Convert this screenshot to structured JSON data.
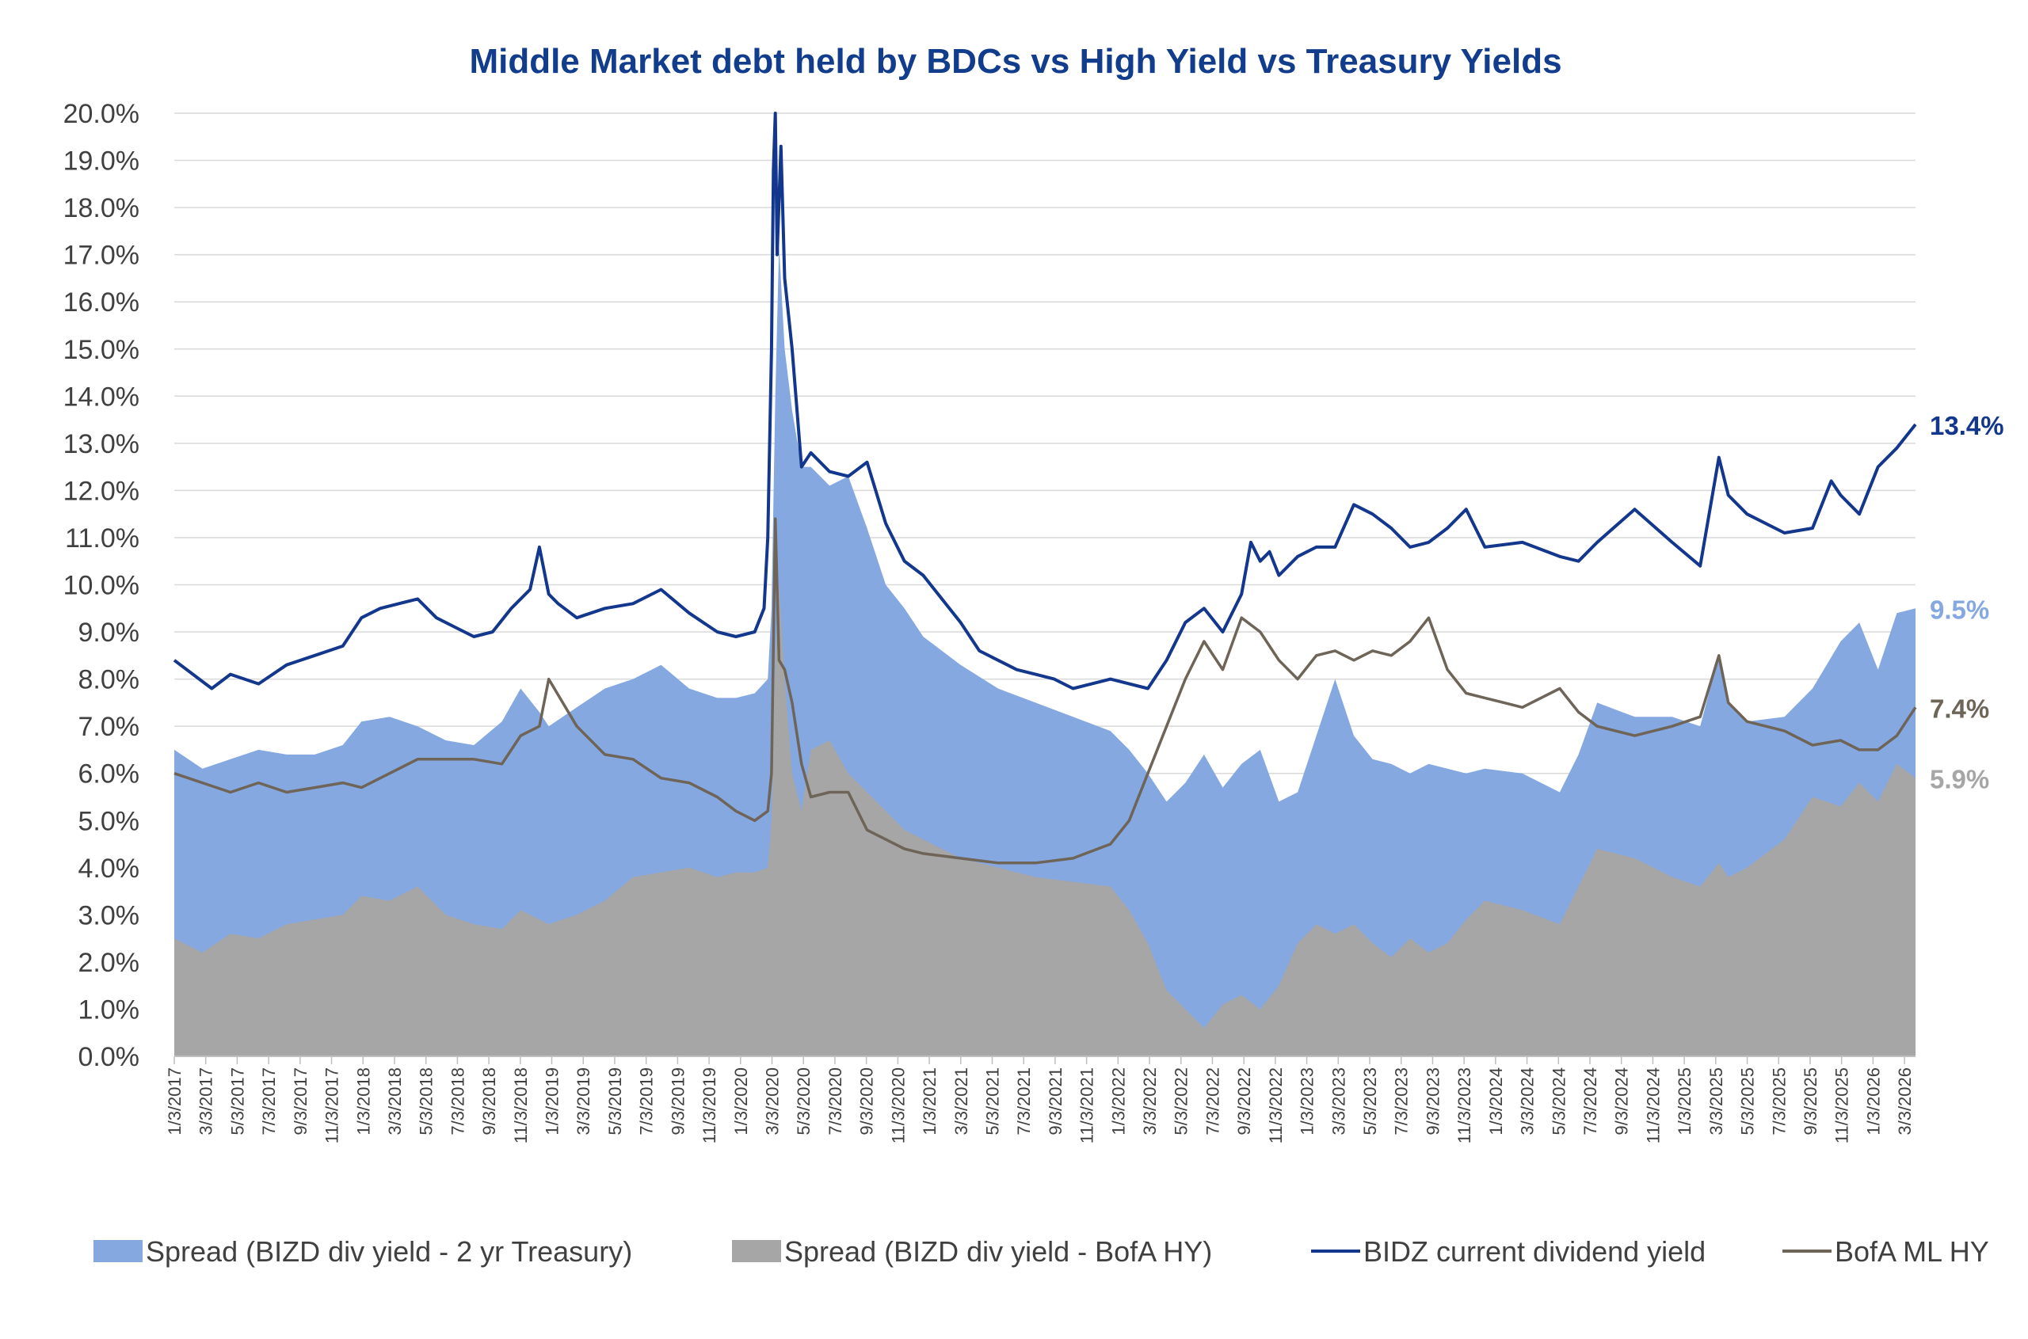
{
  "chart_data": {
    "type": "area",
    "title": "Middle Market debt held by BDCs vs High Yield vs Treasury Yields",
    "xlabel": "",
    "ylabel": "",
    "ylim": [
      0,
      20
    ],
    "y_ticks": [
      "0.0%",
      "1.0%",
      "2.0%",
      "3.0%",
      "4.0%",
      "5.0%",
      "6.0%",
      "7.0%",
      "8.0%",
      "9.0%",
      "10.0%",
      "11.0%",
      "12.0%",
      "13.0%",
      "14.0%",
      "15.0%",
      "16.0%",
      "17.0%",
      "18.0%",
      "19.0%",
      "20.0%"
    ],
    "x_ticks": [
      "1/3/2017",
      "3/3/2017",
      "5/3/2017",
      "7/3/2017",
      "9/3/2017",
      "11/3/2017",
      "1/3/2018",
      "3/3/2018",
      "5/3/2018",
      "7/3/2018",
      "9/3/2018",
      "11/3/2018",
      "1/3/2019",
      "3/3/2019",
      "5/3/2019",
      "7/3/2019",
      "9/3/2019",
      "11/3/2019",
      "1/3/2020",
      "3/3/2020",
      "5/3/2020",
      "7/3/2020",
      "9/3/2020",
      "11/3/2020",
      "1/3/2021",
      "3/3/2021",
      "5/3/2021",
      "7/3/2021",
      "9/3/2021",
      "11/3/2021",
      "1/3/2022",
      "3/3/2022",
      "5/3/2022",
      "7/3/2022",
      "9/3/2022",
      "11/3/2022",
      "1/3/2023",
      "3/3/2023",
      "5/3/2023",
      "7/3/2023",
      "9/3/2023",
      "11/3/2023",
      "1/3/2024",
      "3/3/2024",
      "5/3/2024",
      "7/3/2024",
      "9/3/2024",
      "11/3/2024",
      "1/3/2025",
      "3/3/2025",
      "5/3/2025",
      "7/3/2025",
      "9/3/2025",
      "11/3/2025",
      "1/3/2026",
      "3/3/2026"
    ],
    "x_range": [
      2017.0,
      2026.3
    ],
    "series": [
      {
        "name": "Spread (BIZD div yield - 2 yr Treasury)",
        "kind": "area",
        "color": "#85a8e0",
        "end_label": "9.5%",
        "x": [
          2017.0,
          2017.15,
          2017.3,
          2017.45,
          2017.6,
          2017.75,
          2017.9,
          2018.0,
          2018.15,
          2018.3,
          2018.45,
          2018.6,
          2018.75,
          2018.85,
          2018.95,
          2019.0,
          2019.15,
          2019.3,
          2019.45,
          2019.6,
          2019.75,
          2019.9,
          2020.0,
          2020.1,
          2020.17,
          2020.19,
          2020.21,
          2020.23,
          2020.26,
          2020.3,
          2020.35,
          2020.4,
          2020.5,
          2020.6,
          2020.7,
          2020.8,
          2020.9,
          2021.0,
          2021.2,
          2021.4,
          2021.6,
          2021.8,
          2022.0,
          2022.1,
          2022.2,
          2022.3,
          2022.4,
          2022.5,
          2022.6,
          2022.7,
          2022.8,
          2022.9,
          2023.0,
          2023.1,
          2023.2,
          2023.3,
          2023.4,
          2023.5,
          2023.6,
          2023.7,
          2023.8,
          2023.9,
          2024.0,
          2024.2,
          2024.4,
          2024.5,
          2024.6,
          2024.8,
          2025.0,
          2025.15,
          2025.25,
          2025.3,
          2025.4,
          2025.6,
          2025.75,
          2025.9,
          2026.0,
          2026.1,
          2026.2,
          2026.3
        ],
        "values": [
          6.5,
          6.1,
          6.3,
          6.5,
          6.4,
          6.4,
          6.6,
          7.1,
          7.2,
          7.0,
          6.7,
          6.6,
          7.1,
          7.8,
          7.3,
          7.0,
          7.4,
          7.8,
          8.0,
          8.3,
          7.8,
          7.6,
          7.6,
          7.7,
          8.0,
          9.5,
          14.0,
          17.2,
          15.0,
          13.7,
          12.5,
          12.5,
          12.1,
          12.3,
          11.2,
          10.0,
          9.5,
          8.9,
          8.3,
          7.8,
          7.5,
          7.2,
          6.9,
          6.5,
          6.0,
          5.4,
          5.8,
          6.4,
          5.7,
          6.2,
          6.5,
          5.4,
          5.6,
          6.8,
          8.0,
          6.8,
          6.3,
          6.2,
          6.0,
          6.2,
          6.1,
          6.0,
          6.1,
          6.0,
          5.6,
          6.4,
          7.5,
          7.2,
          7.2,
          7.0,
          8.5,
          7.5,
          7.1,
          7.2,
          7.8,
          8.8,
          9.2,
          8.2,
          9.4,
          9.5
        ]
      },
      {
        "name": "Spread (BIZD div yield - BofA HY)",
        "kind": "area",
        "color": "#a6a6a6",
        "end_label": "5.9%",
        "x": [
          2017.0,
          2017.15,
          2017.3,
          2017.45,
          2017.6,
          2017.75,
          2017.9,
          2018.0,
          2018.15,
          2018.3,
          2018.45,
          2018.6,
          2018.75,
          2018.85,
          2018.95,
          2019.0,
          2019.15,
          2019.3,
          2019.45,
          2019.6,
          2019.75,
          2019.9,
          2020.0,
          2020.1,
          2020.17,
          2020.19,
          2020.21,
          2020.23,
          2020.26,
          2020.3,
          2020.35,
          2020.4,
          2020.5,
          2020.6,
          2020.7,
          2020.8,
          2020.9,
          2021.0,
          2021.2,
          2021.4,
          2021.6,
          2021.8,
          2022.0,
          2022.1,
          2022.2,
          2022.3,
          2022.4,
          2022.5,
          2022.6,
          2022.7,
          2022.8,
          2022.9,
          2023.0,
          2023.1,
          2023.2,
          2023.3,
          2023.4,
          2023.5,
          2023.6,
          2023.7,
          2023.8,
          2023.9,
          2024.0,
          2024.2,
          2024.4,
          2024.5,
          2024.6,
          2024.8,
          2025.0,
          2025.15,
          2025.25,
          2025.3,
          2025.4,
          2025.6,
          2025.75,
          2025.9,
          2026.0,
          2026.1,
          2026.2,
          2026.3
        ],
        "values": [
          2.5,
          2.2,
          2.6,
          2.5,
          2.8,
          2.9,
          3.0,
          3.4,
          3.3,
          3.6,
          3.0,
          2.8,
          2.7,
          3.1,
          2.9,
          2.8,
          3.0,
          3.3,
          3.8,
          3.9,
          4.0,
          3.8,
          3.9,
          3.9,
          4.0,
          5.0,
          8.5,
          10.0,
          8.0,
          6.0,
          5.2,
          6.5,
          6.7,
          6.0,
          5.6,
          5.2,
          4.8,
          4.6,
          4.2,
          4.0,
          3.8,
          3.7,
          3.6,
          3.1,
          2.4,
          1.4,
          1.0,
          0.6,
          1.1,
          1.3,
          1.0,
          1.5,
          2.4,
          2.8,
          2.6,
          2.8,
          2.4,
          2.1,
          2.5,
          2.2,
          2.4,
          2.9,
          3.3,
          3.1,
          2.8,
          3.6,
          4.4,
          4.2,
          3.8,
          3.6,
          4.1,
          3.8,
          4.0,
          4.6,
          5.5,
          5.3,
          5.8,
          5.4,
          6.2,
          5.9
        ]
      },
      {
        "name": "BIDZ current dividend yield",
        "kind": "line",
        "color": "#13378c",
        "end_label": "13.4%",
        "x": [
          2017.0,
          2017.1,
          2017.2,
          2017.3,
          2017.45,
          2017.6,
          2017.75,
          2017.9,
          2018.0,
          2018.1,
          2018.2,
          2018.3,
          2018.4,
          2018.5,
          2018.6,
          2018.7,
          2018.8,
          2018.9,
          2018.95,
          2019.0,
          2019.05,
          2019.15,
          2019.3,
          2019.45,
          2019.6,
          2019.75,
          2019.9,
          2020.0,
          2020.1,
          2020.15,
          2020.17,
          2020.19,
          2020.2,
          2020.21,
          2020.22,
          2020.24,
          2020.26,
          2020.3,
          2020.35,
          2020.4,
          2020.5,
          2020.6,
          2020.7,
          2020.8,
          2020.9,
          2021.0,
          2021.1,
          2021.2,
          2021.3,
          2021.4,
          2021.5,
          2021.6,
          2021.7,
          2021.8,
          2021.9,
          2022.0,
          2022.1,
          2022.2,
          2022.3,
          2022.4,
          2022.5,
          2022.6,
          2022.7,
          2022.75,
          2022.8,
          2022.85,
          2022.9,
          2023.0,
          2023.1,
          2023.2,
          2023.3,
          2023.4,
          2023.5,
          2023.6,
          2023.7,
          2023.8,
          2023.9,
          2024.0,
          2024.2,
          2024.4,
          2024.5,
          2024.6,
          2024.8,
          2025.0,
          2025.15,
          2025.25,
          2025.3,
          2025.4,
          2025.6,
          2025.75,
          2025.85,
          2025.9,
          2026.0,
          2026.1,
          2026.2,
          2026.3
        ],
        "values": [
          8.4,
          8.1,
          7.8,
          8.1,
          7.9,
          8.3,
          8.5,
          8.7,
          9.3,
          9.5,
          9.6,
          9.7,
          9.3,
          9.1,
          8.9,
          9.0,
          9.5,
          9.9,
          10.8,
          9.8,
          9.6,
          9.3,
          9.5,
          9.6,
          9.9,
          9.4,
          9.0,
          8.9,
          9.0,
          9.5,
          11.0,
          15.0,
          18.8,
          20.0,
          17.0,
          19.3,
          16.5,
          15.0,
          12.5,
          12.8,
          12.4,
          12.3,
          12.6,
          11.3,
          10.5,
          10.2,
          9.7,
          9.2,
          8.6,
          8.4,
          8.2,
          8.1,
          8.0,
          7.8,
          7.9,
          8.0,
          7.9,
          7.8,
          8.4,
          9.2,
          9.5,
          9.0,
          9.8,
          10.9,
          10.5,
          10.7,
          10.2,
          10.6,
          10.8,
          10.8,
          11.7,
          11.5,
          11.2,
          10.8,
          10.9,
          11.2,
          11.6,
          10.8,
          10.9,
          10.6,
          10.5,
          10.9,
          11.6,
          10.9,
          10.4,
          12.7,
          11.9,
          11.5,
          11.1,
          11.2,
          12.2,
          11.9,
          11.5,
          12.5,
          12.9,
          13.4
        ]
      },
      {
        "name": "BofA ML HY",
        "kind": "line",
        "color": "#6e6457",
        "end_label": "7.4%",
        "x": [
          2017.0,
          2017.15,
          2017.3,
          2017.45,
          2017.6,
          2017.75,
          2017.9,
          2018.0,
          2018.15,
          2018.3,
          2018.45,
          2018.6,
          2018.75,
          2018.85,
          2018.95,
          2019.0,
          2019.15,
          2019.3,
          2019.45,
          2019.6,
          2019.75,
          2019.9,
          2020.0,
          2020.1,
          2020.17,
          2020.19,
          2020.21,
          2020.23,
          2020.26,
          2020.3,
          2020.35,
          2020.4,
          2020.5,
          2020.6,
          2020.7,
          2020.8,
          2020.9,
          2021.0,
          2021.2,
          2021.4,
          2021.6,
          2021.8,
          2022.0,
          2022.1,
          2022.2,
          2022.3,
          2022.4,
          2022.5,
          2022.6,
          2022.7,
          2022.8,
          2022.9,
          2023.0,
          2023.1,
          2023.2,
          2023.3,
          2023.4,
          2023.5,
          2023.6,
          2023.7,
          2023.8,
          2023.9,
          2024.0,
          2024.2,
          2024.4,
          2024.5,
          2024.6,
          2024.8,
          2025.0,
          2025.15,
          2025.25,
          2025.3,
          2025.4,
          2025.6,
          2025.75,
          2025.9,
          2026.0,
          2026.1,
          2026.2,
          2026.3
        ],
        "values": [
          6.0,
          5.8,
          5.6,
          5.8,
          5.6,
          5.7,
          5.8,
          5.7,
          6.0,
          6.3,
          6.3,
          6.3,
          6.2,
          6.8,
          7.0,
          8.0,
          7.0,
          6.4,
          6.3,
          5.9,
          5.8,
          5.5,
          5.2,
          5.0,
          5.2,
          6.0,
          11.4,
          8.4,
          8.2,
          7.5,
          6.2,
          5.5,
          5.6,
          5.6,
          4.8,
          4.6,
          4.4,
          4.3,
          4.2,
          4.1,
          4.1,
          4.2,
          4.5,
          5.0,
          6.0,
          7.0,
          8.0,
          8.8,
          8.2,
          9.3,
          9.0,
          8.4,
          8.0,
          8.5,
          8.6,
          8.4,
          8.6,
          8.5,
          8.8,
          9.3,
          8.2,
          7.7,
          7.6,
          7.4,
          7.8,
          7.3,
          7.0,
          6.8,
          7.0,
          7.2,
          8.5,
          7.5,
          7.1,
          6.9,
          6.6,
          6.7,
          6.5,
          6.5,
          6.8,
          7.4
        ]
      }
    ],
    "legend": [
      "Spread (BIZD div yield - 2 yr Treasury)",
      "Spread (BIZD div yield - BofA HY)",
      "BIDZ current dividend yield",
      "BofA ML HY"
    ],
    "legend_position": "bottom",
    "grid": true
  }
}
